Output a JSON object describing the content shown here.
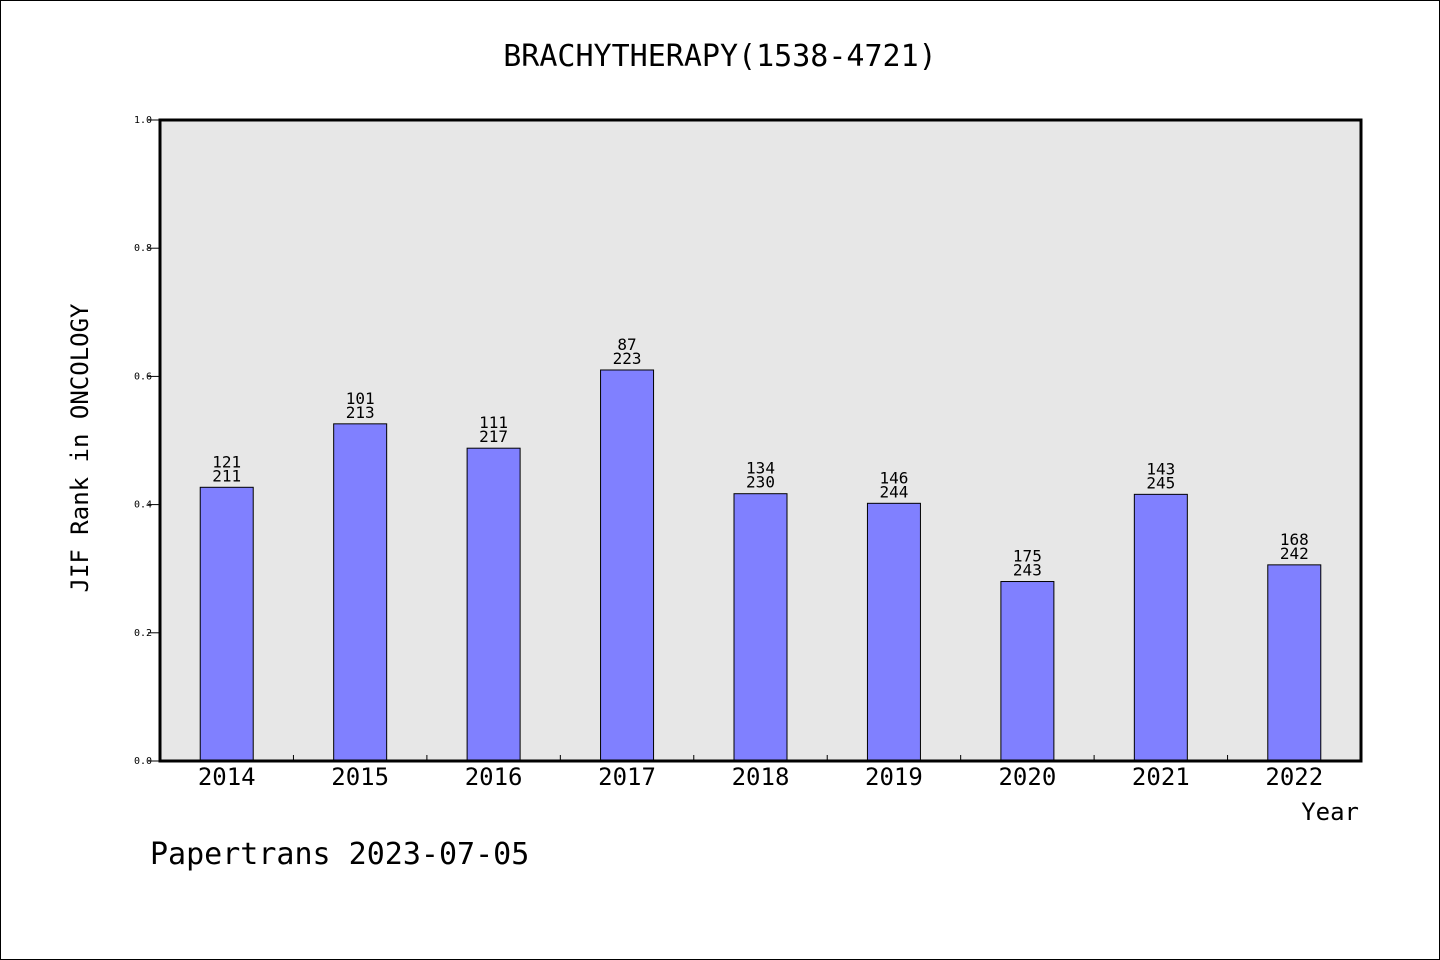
{
  "chart_data": {
    "type": "bar",
    "title": "BRACHYTHERAPY(1538-4721)",
    "ylabel": "JIF Rank in ONCOLOGY",
    "xlabel": "Year",
    "ylim": [
      0,
      1.0
    ],
    "yticks": [
      "0.0",
      "0.2",
      "0.4",
      "0.6",
      "0.8",
      "1.0"
    ],
    "categories": [
      "2014",
      "2015",
      "2016",
      "2017",
      "2018",
      "2019",
      "2020",
      "2021",
      "2022"
    ],
    "values": [
      0.427,
      0.526,
      0.488,
      0.61,
      0.417,
      0.402,
      0.28,
      0.416,
      0.306
    ],
    "rank_labels": [
      "121",
      "101",
      "111",
      "87",
      "134",
      "146",
      "175",
      "143",
      "168"
    ],
    "total_labels": [
      "211",
      "213",
      "217",
      "223",
      "230",
      "244",
      "243",
      "245",
      "242"
    ],
    "grid": false,
    "plot_background": "#e7e7e7",
    "bar_color": "#8080ff"
  },
  "footer": "Papertrans 2023-07-05"
}
